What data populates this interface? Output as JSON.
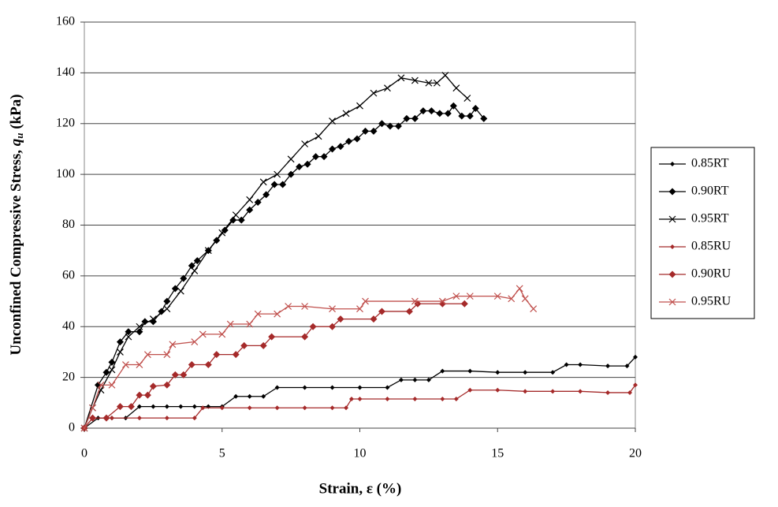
{
  "chart_data": {
    "type": "line",
    "x_label": "Strain, ε (%)",
    "y_label": {
      "text": "Unconfined Compressive Stress, ",
      "symbol": "q",
      "subscript": "u",
      "unit": " (kPa)"
    },
    "xlim": [
      0,
      20
    ],
    "xticks": [
      0,
      5,
      10,
      15,
      20
    ],
    "ylim": [
      0,
      160
    ],
    "yticks": [
      0,
      20,
      40,
      60,
      80,
      100,
      120,
      140,
      160
    ],
    "grid": true,
    "legend": "right",
    "series": [
      {
        "name": "0.85RT",
        "color": "#000000",
        "marker": "dot",
        "x": [
          0,
          0.5,
          1,
          1.5,
          2,
          2.5,
          3,
          3.5,
          4,
          4.5,
          5,
          5.5,
          6,
          6.5,
          7,
          8,
          9,
          10,
          11,
          11.5,
          12,
          12.5,
          13,
          14,
          15,
          16,
          17,
          17.5,
          18,
          19,
          19.7,
          20
        ],
        "values": [
          0,
          4,
          4,
          4,
          8.5,
          8.5,
          8.5,
          8.5,
          8.5,
          8.5,
          8.5,
          12.5,
          12.5,
          12.5,
          16,
          16,
          16,
          16,
          16,
          19,
          19,
          19,
          22.5,
          22.5,
          22,
          22,
          22,
          25,
          25,
          24.5,
          24.5,
          28
        ]
      },
      {
        "name": "0.90RT",
        "color": "#000000",
        "marker": "diamond",
        "x": [
          0,
          0.5,
          0.8,
          1,
          1.3,
          1.6,
          2,
          2.2,
          2.5,
          2.8,
          3,
          3.3,
          3.6,
          3.9,
          4.1,
          4.5,
          4.8,
          5.1,
          5.4,
          5.7,
          6,
          6.3,
          6.6,
          6.9,
          7.2,
          7.5,
          7.8,
          8.1,
          8.4,
          8.7,
          9,
          9.3,
          9.6,
          9.9,
          10.2,
          10.5,
          10.8,
          11.1,
          11.4,
          11.7,
          12,
          12.3,
          12.6,
          12.9,
          13.2,
          13.4,
          13.7,
          14,
          14.2,
          14.5
        ],
        "values": [
          0,
          17,
          22,
          26,
          34,
          38,
          38,
          42,
          42,
          46,
          50,
          55,
          59,
          64,
          66,
          70,
          74,
          78,
          82,
          82,
          86,
          89,
          92,
          96,
          96,
          100,
          103,
          104,
          107,
          107,
          110,
          111,
          113,
          114,
          117,
          117,
          120,
          119,
          119,
          122,
          122,
          125,
          125,
          124,
          124,
          127,
          123,
          123,
          126,
          122
        ]
      },
      {
        "name": "0.95RT",
        "color": "#000000",
        "marker": "x",
        "x": [
          0,
          0.3,
          0.6,
          1,
          1.3,
          1.6,
          2,
          2.5,
          3,
          3.5,
          4,
          4.5,
          5,
          5.5,
          6,
          6.5,
          7,
          7.5,
          8,
          8.5,
          9,
          9.5,
          10,
          10.5,
          11,
          11.5,
          12,
          12.5,
          12.8,
          13.1,
          13.5,
          13.9
        ],
        "values": [
          0,
          8,
          15,
          23,
          30,
          36,
          40,
          43,
          47,
          54,
          62,
          70,
          77,
          84,
          90,
          97,
          100,
          106,
          112,
          115,
          121,
          124,
          127,
          132,
          134,
          138,
          137,
          136,
          136,
          139,
          134,
          130
        ]
      },
      {
        "name": "0.85RU",
        "color": "#a52a2a",
        "marker": "dot",
        "x": [
          0,
          0.3,
          1,
          2,
          3,
          4,
          4.3,
          5,
          6,
          7,
          8,
          9,
          9.5,
          9.7,
          10,
          11,
          12,
          13,
          13.5,
          14,
          15,
          16,
          17,
          18,
          19,
          19.8,
          20
        ],
        "values": [
          0,
          4,
          4,
          4,
          4,
          4,
          8,
          8,
          8,
          8,
          8,
          8,
          8,
          11.5,
          11.5,
          11.5,
          11.5,
          11.5,
          11.5,
          15,
          15,
          14.5,
          14.5,
          14.5,
          14,
          14,
          17
        ]
      },
      {
        "name": "0.90RU",
        "color": "#a52a2a",
        "marker": "diamond",
        "x": [
          0,
          0.3,
          0.8,
          1.3,
          1.7,
          2,
          2.3,
          2.5,
          3,
          3.3,
          3.6,
          3.9,
          4.5,
          4.8,
          5.5,
          5.8,
          6.5,
          6.8,
          8,
          8.3,
          9,
          9.3,
          10.5,
          10.8,
          11.8,
          12.1,
          13,
          13.8
        ],
        "values": [
          0,
          4,
          4,
          8.5,
          8.5,
          13,
          13,
          16.5,
          17,
          21,
          21,
          25,
          25,
          29,
          29,
          32.5,
          32.5,
          36,
          36,
          40,
          40,
          43,
          43,
          46,
          46,
          49,
          49,
          49
        ]
      },
      {
        "name": "0.95RU",
        "color": "#c0504d",
        "marker": "x",
        "x": [
          0,
          0.3,
          0.6,
          1,
          1.5,
          2,
          2.3,
          3,
          3.2,
          4,
          4.3,
          5,
          5.3,
          6,
          6.3,
          7,
          7.4,
          8,
          9,
          10,
          10.2,
          12,
          13,
          13.5,
          14,
          15,
          15.5,
          15.8,
          16,
          16.3
        ],
        "values": [
          0,
          8,
          17,
          17,
          25,
          25,
          29,
          29,
          33,
          34,
          37,
          37,
          41,
          41,
          45,
          45,
          48,
          48,
          47,
          47,
          50,
          50,
          50,
          52,
          52,
          52,
          51,
          55,
          51,
          47
        ]
      }
    ]
  }
}
